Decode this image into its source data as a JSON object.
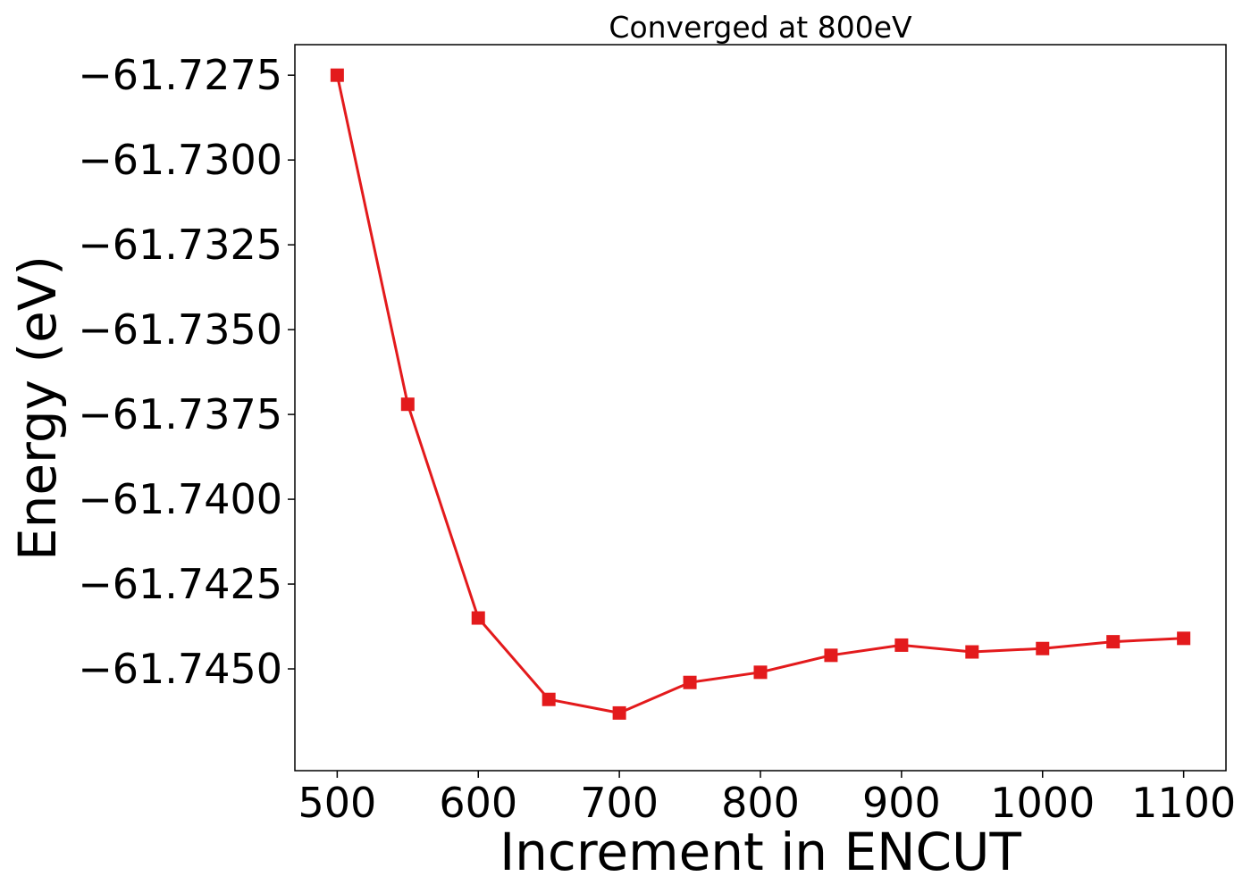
{
  "chart_data": {
    "type": "line",
    "title": "Converged at 800eV",
    "xlabel": "Increment in ENCUT",
    "ylabel": "Energy (eV)",
    "xlim": [
      470,
      1130
    ],
    "ylim": [
      -61.748,
      -61.7266
    ],
    "xticks": [
      500,
      600,
      700,
      800,
      900,
      1000,
      1100
    ],
    "yticks": [
      -61.7275,
      -61.73,
      -61.7325,
      -61.735,
      -61.7375,
      -61.74,
      -61.7425,
      -61.745
    ],
    "grid": false,
    "legend": "none",
    "series": [
      {
        "marker": "square",
        "color": "#e31a1c",
        "x": [
          500,
          550,
          600,
          650,
          700,
          750,
          800,
          850,
          900,
          950,
          1000,
          1050,
          1100
        ],
        "y": [
          -61.7275,
          -61.7372,
          -61.7435,
          -61.7459,
          -61.7463,
          -61.7454,
          -61.7451,
          -61.7446,
          -61.7443,
          -61.7445,
          -61.7444,
          -61.7442,
          -61.7441
        ]
      }
    ]
  }
}
